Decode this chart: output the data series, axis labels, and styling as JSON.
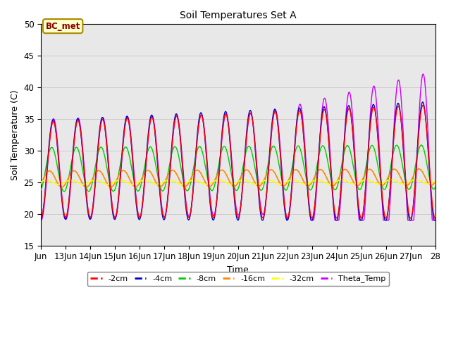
{
  "title": "Soil Temperatures Set A",
  "xlabel": "Time",
  "ylabel": "Soil Temperature (C)",
  "ylim": [
    15,
    50
  ],
  "n_days": 16,
  "annotation": "BC_met",
  "grid_color": "#cccccc",
  "bg_color": "#e8e8e8",
  "x_tick_labels": [
    "Jun",
    "13Jun",
    "14Jun",
    "15Jun",
    "16Jun",
    "17Jun",
    "18Jun",
    "19Jun",
    "20Jun",
    "21Jun",
    "22Jun",
    "23Jun",
    "24Jun",
    "25Jun",
    "26Jun",
    "27Jun",
    "28"
  ],
  "series_colors": {
    "-2cm": "#ff0000",
    "-4cm": "#0000cc",
    "-8cm": "#00cc00",
    "-16cm": "#ff8800",
    "-32cm": "#ffff00",
    "Theta_Temp": "#cc00ff"
  },
  "legend_order": [
    "-2cm",
    "-4cm",
    "-8cm",
    "-16cm",
    "-32cm",
    "Theta_Temp"
  ]
}
